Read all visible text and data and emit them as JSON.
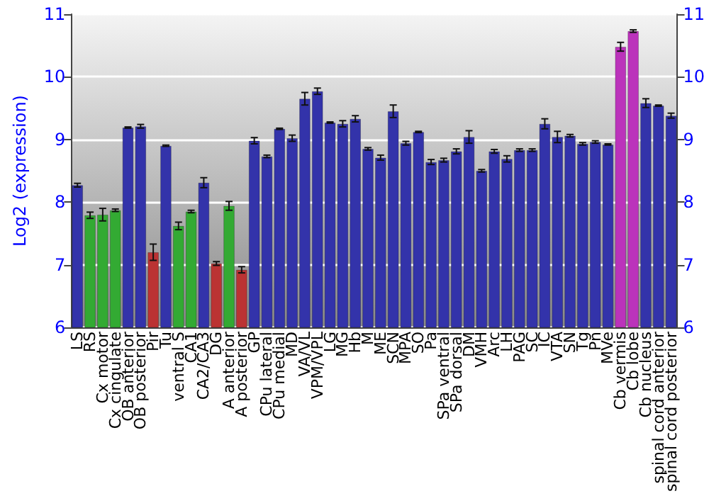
{
  "chart_data": {
    "type": "bar",
    "ylabel": "Log2 (expression)",
    "categories": [
      "LS",
      "RS",
      "Cx motor",
      "Cx cingulate",
      "OB anterior",
      "OB posterior",
      "Pir",
      "Tu",
      "ventral S",
      "CA1",
      "CA2/CA3",
      "DG",
      "A anterior",
      "A posterior",
      "GP",
      "CPu lateral",
      "CPu medial",
      "MD",
      "VA/VL",
      "VPM/VPL",
      "LG",
      "MG",
      "Hb",
      "M",
      "ME",
      "SCN",
      "MPA",
      "SO",
      "Pa",
      "SPa ventral",
      "SPa dorsal",
      "DM",
      "VMH",
      "Arc",
      "LH",
      "PAG",
      "SC",
      "IC",
      "VTA",
      "SN",
      "Tg",
      "Pn",
      "MVe",
      "Cb vermis",
      "Cb lobe",
      "Cb nucleus",
      "spinal cord anterior",
      "spinal cord posterior"
    ],
    "values": [
      8.27,
      7.79,
      7.8,
      7.87,
      9.19,
      9.21,
      7.2,
      8.9,
      7.62,
      7.85,
      8.31,
      7.02,
      7.94,
      6.92,
      8.98,
      8.73,
      9.17,
      9.02,
      9.65,
      9.77,
      9.27,
      9.25,
      9.33,
      8.85,
      8.71,
      9.45,
      8.94,
      9.12,
      8.64,
      8.67,
      8.81,
      9.04,
      8.5,
      8.81,
      8.69,
      8.83,
      8.83,
      9.25,
      9.04,
      9.06,
      8.93,
      8.96,
      8.92,
      10.48,
      10.73,
      9.58,
      9.54,
      9.38
    ],
    "errors": [
      0.03,
      0.05,
      0.1,
      0.02,
      0.01,
      0.03,
      0.13,
      0.01,
      0.06,
      0.02,
      0.08,
      0.03,
      0.07,
      0.05,
      0.05,
      0.02,
      0.01,
      0.05,
      0.1,
      0.05,
      0.01,
      0.05,
      0.05,
      0.02,
      0.04,
      0.1,
      0.03,
      0.01,
      0.04,
      0.03,
      0.04,
      0.1,
      0.02,
      0.03,
      0.05,
      0.02,
      0.02,
      0.08,
      0.09,
      0.02,
      0.02,
      0.02,
      0.01,
      0.07,
      0.02,
      0.07,
      0.01,
      0.04
    ],
    "colors": [
      "#3333aa",
      "#33aa33",
      "#33aa33",
      "#33aa33",
      "#3333aa",
      "#3333aa",
      "#bb3333",
      "#3333aa",
      "#33aa33",
      "#33aa33",
      "#3333aa",
      "#bb3333",
      "#33aa33",
      "#bb3333",
      "#3333aa",
      "#3333aa",
      "#3333aa",
      "#3333aa",
      "#3333aa",
      "#3333aa",
      "#3333aa",
      "#3333aa",
      "#3333aa",
      "#3333aa",
      "#3333aa",
      "#3333aa",
      "#3333aa",
      "#3333aa",
      "#3333aa",
      "#3333aa",
      "#3333aa",
      "#3333aa",
      "#3333aa",
      "#3333aa",
      "#3333aa",
      "#3333aa",
      "#3333aa",
      "#3333aa",
      "#3333aa",
      "#3333aa",
      "#3333aa",
      "#3333aa",
      "#3333aa",
      "#bb33bb",
      "#bb33bb",
      "#3333aa",
      "#3333aa",
      "#3333aa"
    ],
    "ylim": [
      6,
      11
    ],
    "yticks": [
      6,
      7,
      8,
      9,
      10,
      11
    ],
    "y2lim": [
      6,
      11
    ],
    "y2ticks": [
      6,
      7,
      8,
      9,
      10,
      11
    ],
    "grid": "y"
  }
}
